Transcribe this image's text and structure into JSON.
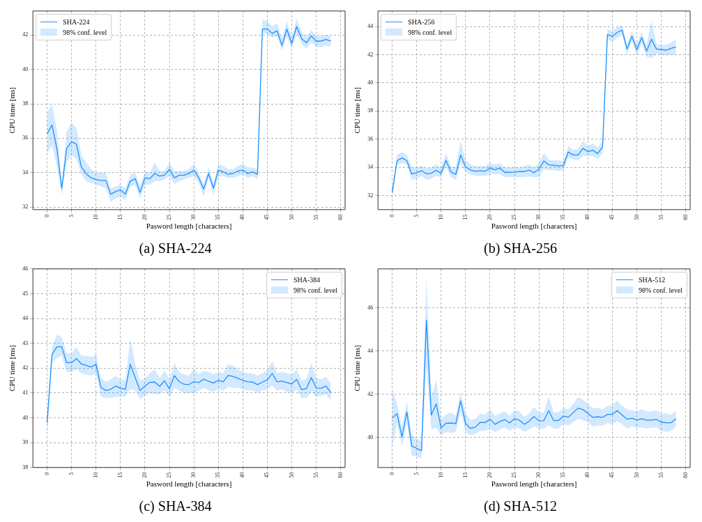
{
  "chart_data": [
    {
      "type": "line",
      "title": "(a) SHA-224",
      "xlabel": "Pasword length [characters]",
      "ylabel": "CPU time [ms]",
      "grid": true,
      "legend": "top left",
      "annotations": [
        "98% conf. level"
      ],
      "xlim": [
        -2.9,
        60.9
      ],
      "ylim": [
        31.85,
        43.4
      ],
      "xticks": [
        0,
        5,
        10,
        15,
        20,
        25,
        30,
        35,
        40,
        45,
        50,
        55,
        60
      ],
      "yticks": [
        32,
        34,
        36,
        38,
        40,
        42
      ],
      "x": [
        0,
        1,
        2,
        3,
        4,
        5,
        6,
        7,
        8,
        9,
        10,
        11,
        12,
        13,
        14,
        15,
        16,
        17,
        18,
        19,
        20,
        21,
        22,
        23,
        24,
        25,
        26,
        27,
        28,
        29,
        30,
        31,
        32,
        33,
        34,
        35,
        36,
        37,
        38,
        39,
        40,
        41,
        42,
        43,
        44,
        45,
        46,
        47,
        48,
        49,
        50,
        51,
        52,
        53,
        54,
        55,
        56,
        57,
        58
      ],
      "series": [
        {
          "name": "SHA-224",
          "color": "#1e90ff",
          "values": [
            36.26,
            36.77,
            35.4,
            33.1,
            35.4,
            35.8,
            35.65,
            34.34,
            33.93,
            33.7,
            33.6,
            33.55,
            33.55,
            32.75,
            32.9,
            33.0,
            32.75,
            33.5,
            33.65,
            32.85,
            33.7,
            33.65,
            33.95,
            33.8,
            33.85,
            34.2,
            33.7,
            33.85,
            33.85,
            33.95,
            34.15,
            33.7,
            33.05,
            33.95,
            33.1,
            34.15,
            34.05,
            33.9,
            33.95,
            34.1,
            34.15,
            33.95,
            34.05,
            33.9,
            42.35,
            42.35,
            42.1,
            42.25,
            41.4,
            42.35,
            41.5,
            42.5,
            41.8,
            41.55,
            41.95,
            41.65,
            41.65,
            41.75,
            41.65
          ],
          "lower": [
            35.1,
            35.6,
            34.4,
            32.7,
            34.6,
            35.0,
            34.8,
            33.9,
            33.5,
            33.4,
            33.3,
            33.2,
            33.1,
            32.3,
            32.5,
            32.6,
            32.4,
            33.2,
            33.3,
            32.5,
            33.3,
            33.3,
            33.5,
            33.5,
            33.6,
            33.8,
            33.35,
            33.5,
            33.6,
            33.7,
            33.8,
            33.4,
            32.6,
            33.7,
            32.7,
            33.8,
            33.8,
            33.7,
            33.7,
            33.8,
            33.9,
            33.7,
            33.8,
            33.6,
            42.1,
            42.05,
            41.85,
            41.95,
            41.1,
            41.9,
            41.2,
            42.1,
            41.5,
            41.2,
            41.6,
            41.3,
            41.3,
            41.4,
            41.3
          ],
          "upper": [
            37.5,
            37.95,
            36.5,
            33.4,
            36.4,
            36.9,
            36.6,
            35.0,
            34.6,
            34.2,
            34.0,
            34.0,
            34.0,
            33.1,
            33.2,
            33.3,
            33.1,
            33.9,
            34.0,
            33.2,
            34.1,
            34.0,
            34.6,
            34.1,
            34.1,
            34.6,
            34.1,
            34.1,
            34.1,
            34.2,
            34.5,
            34.0,
            33.3,
            34.3,
            33.4,
            34.5,
            34.4,
            34.2,
            34.2,
            34.4,
            34.5,
            34.3,
            34.3,
            34.2,
            42.9,
            42.8,
            42.5,
            42.7,
            41.8,
            42.8,
            41.9,
            42.95,
            42.2,
            41.9,
            42.3,
            41.95,
            41.95,
            42.0,
            41.95
          ]
        }
      ]
    },
    {
      "type": "line",
      "title": "(b) SHA-256",
      "xlabel": "Pasword length [characters]",
      "ylabel": "CPU time [ms]",
      "grid": true,
      "legend": "top left",
      "annotations": [
        "98% conf. level"
      ],
      "xlim": [
        -2.9,
        60.9
      ],
      "ylim": [
        31.0,
        45.1
      ],
      "xticks": [
        0,
        5,
        10,
        15,
        20,
        25,
        30,
        35,
        40,
        45,
        50,
        55,
        60
      ],
      "yticks": [
        32,
        34,
        36,
        38,
        40,
        42,
        44
      ],
      "x": [
        0,
        1,
        2,
        3,
        4,
        5,
        6,
        7,
        8,
        9,
        10,
        11,
        12,
        13,
        14,
        15,
        16,
        17,
        18,
        19,
        20,
        21,
        22,
        23,
        24,
        25,
        26,
        27,
        28,
        29,
        30,
        31,
        32,
        33,
        34,
        35,
        36,
        37,
        38,
        39,
        40,
        41,
        42,
        43,
        44,
        45,
        46,
        47,
        48,
        49,
        50,
        51,
        52,
        53,
        54,
        55,
        56,
        57,
        58
      ],
      "series": [
        {
          "name": "SHA-256",
          "color": "#1e90ff",
          "values": [
            32.23,
            34.48,
            34.67,
            34.48,
            33.53,
            33.62,
            33.77,
            33.55,
            33.58,
            33.8,
            33.57,
            34.5,
            33.68,
            33.5,
            34.88,
            34.02,
            33.82,
            33.72,
            33.77,
            33.72,
            33.95,
            33.83,
            33.95,
            33.65,
            33.65,
            33.67,
            33.7,
            33.7,
            33.8,
            33.62,
            33.87,
            34.45,
            34.18,
            34.15,
            34.1,
            34.13,
            35.1,
            34.88,
            34.88,
            35.35,
            35.12,
            35.22,
            34.98,
            35.45,
            43.43,
            43.3,
            43.58,
            43.75,
            42.4,
            43.3,
            42.35,
            43.22,
            42.25,
            43.1,
            42.4,
            42.37,
            42.32,
            42.45,
            42.55
          ],
          "lower": [
            31.6,
            34.2,
            34.3,
            34.2,
            33.1,
            33.2,
            33.4,
            33.1,
            33.2,
            33.4,
            33.3,
            34.1,
            33.3,
            33.1,
            34.3,
            33.7,
            33.5,
            33.4,
            33.4,
            33.4,
            33.5,
            33.5,
            33.5,
            33.3,
            33.3,
            33.3,
            33.3,
            33.3,
            33.35,
            33.3,
            33.3,
            33.9,
            33.8,
            33.8,
            33.75,
            33.8,
            34.7,
            34.55,
            34.5,
            34.8,
            34.8,
            34.8,
            34.6,
            35.0,
            43.1,
            42.95,
            43.2,
            43.4,
            42.0,
            42.95,
            41.95,
            42.8,
            41.85,
            41.75,
            42.05,
            42.0,
            41.95,
            42.0,
            42.0
          ],
          "upper": [
            32.5,
            34.9,
            35.1,
            34.9,
            34.0,
            34.0,
            34.1,
            33.95,
            34.0,
            34.2,
            34.0,
            35.0,
            34.1,
            34.0,
            35.85,
            34.5,
            34.2,
            34.1,
            34.1,
            34.1,
            34.3,
            34.2,
            34.3,
            34.0,
            34.0,
            34.0,
            34.0,
            34.1,
            34.2,
            34.0,
            34.3,
            35.05,
            34.55,
            34.5,
            34.5,
            34.45,
            35.5,
            35.25,
            35.3,
            35.9,
            35.5,
            35.7,
            35.4,
            35.9,
            43.8,
            43.7,
            43.95,
            44.1,
            42.8,
            43.65,
            42.8,
            43.6,
            42.65,
            44.45,
            42.75,
            42.7,
            42.7,
            42.85,
            43.1
          ]
        }
      ]
    },
    {
      "type": "line",
      "title": "(c) SHA-384",
      "xlabel": "Pasword length [characters]",
      "ylabel": "CPU time [ms]",
      "grid": true,
      "legend": "top right",
      "annotations": [
        "98% conf. level"
      ],
      "xlim": [
        -2.9,
        60.9
      ],
      "ylim": [
        38,
        46
      ],
      "xticks": [
        0,
        5,
        10,
        15,
        20,
        25,
        30,
        35,
        40,
        45,
        50,
        55,
        60
      ],
      "yticks": [
        38,
        39,
        40,
        41,
        42,
        43,
        44,
        45,
        46
      ],
      "x": [
        0,
        1,
        2,
        3,
        4,
        5,
        6,
        7,
        8,
        9,
        10,
        11,
        12,
        13,
        14,
        15,
        16,
        17,
        18,
        19,
        20,
        21,
        22,
        23,
        24,
        25,
        26,
        27,
        28,
        29,
        30,
        31,
        32,
        33,
        34,
        35,
        36,
        37,
        38,
        39,
        40,
        41,
        42,
        43,
        44,
        45,
        46,
        47,
        48,
        49,
        50,
        51,
        52,
        53,
        54,
        55,
        56,
        57,
        58
      ],
      "series": [
        {
          "name": "SHA-384",
          "color": "#1e90ff",
          "values": [
            39.8,
            42.55,
            42.86,
            42.86,
            42.22,
            42.22,
            42.39,
            42.17,
            42.11,
            42.05,
            42.16,
            41.23,
            41.1,
            41.15,
            41.28,
            41.19,
            41.15,
            42.16,
            41.62,
            41.1,
            41.28,
            41.43,
            41.44,
            41.27,
            41.49,
            41.17,
            41.7,
            41.46,
            41.35,
            41.34,
            41.46,
            41.42,
            41.56,
            41.47,
            41.4,
            41.51,
            41.45,
            41.71,
            41.67,
            41.59,
            41.51,
            41.45,
            41.44,
            41.34,
            41.44,
            41.53,
            41.79,
            41.45,
            41.48,
            41.42,
            41.36,
            41.55,
            41.14,
            41.18,
            41.62,
            41.2,
            41.19,
            41.28,
            41.02
          ],
          "lower": [
            39.2,
            42.2,
            42.4,
            42.5,
            41.85,
            41.85,
            41.95,
            41.8,
            41.75,
            41.7,
            41.8,
            40.85,
            40.8,
            40.8,
            40.85,
            40.85,
            40.85,
            41.15,
            41.1,
            40.75,
            40.9,
            41.0,
            40.95,
            40.95,
            41.1,
            40.85,
            41.2,
            41.1,
            41.0,
            41.0,
            41.0,
            41.1,
            41.2,
            41.1,
            41.05,
            41.15,
            41.1,
            41.25,
            41.2,
            41.2,
            41.15,
            41.1,
            41.1,
            41.0,
            41.1,
            41.15,
            41.3,
            41.1,
            41.15,
            41.05,
            41.0,
            41.15,
            40.8,
            40.8,
            41.05,
            40.85,
            40.9,
            40.95,
            40.7
          ],
          "upper": [
            39.8,
            42.85,
            43.35,
            43.25,
            42.6,
            42.6,
            42.85,
            42.5,
            42.5,
            42.45,
            42.55,
            41.6,
            41.45,
            41.55,
            41.7,
            41.55,
            41.5,
            43.2,
            42.2,
            41.5,
            41.6,
            41.8,
            41.95,
            41.6,
            41.9,
            41.55,
            42.2,
            41.85,
            41.75,
            41.7,
            41.95,
            41.75,
            41.9,
            41.85,
            41.75,
            41.85,
            41.8,
            42.15,
            42.1,
            41.95,
            41.85,
            41.8,
            41.8,
            41.7,
            41.8,
            41.9,
            42.3,
            41.8,
            41.85,
            41.8,
            41.75,
            41.95,
            41.5,
            41.55,
            42.2,
            41.6,
            41.55,
            41.65,
            41.4
          ]
        }
      ]
    },
    {
      "type": "line",
      "title": "(d) SHA-512",
      "xlabel": "Pasword length [characters]",
      "ylabel": "CPU time [ms]",
      "grid": true,
      "legend": "top right",
      "annotations": [
        "98% conf. level"
      ],
      "xlim": [
        -2.9,
        60.9
      ],
      "ylim": [
        38.6,
        47.8
      ],
      "xticks": [
        0,
        5,
        10,
        15,
        20,
        25,
        30,
        35,
        40,
        45,
        50,
        55,
        60
      ],
      "yticks": [
        40,
        42,
        44,
        46
      ],
      "x": [
        0,
        1,
        2,
        3,
        4,
        5,
        6,
        7,
        8,
        9,
        10,
        11,
        12,
        13,
        14,
        15,
        16,
        17,
        18,
        19,
        20,
        21,
        22,
        23,
        24,
        25,
        26,
        27,
        28,
        29,
        30,
        31,
        32,
        33,
        34,
        35,
        36,
        37,
        38,
        39,
        40,
        41,
        42,
        43,
        44,
        45,
        46,
        47,
        48,
        49,
        50,
        51,
        52,
        53,
        54,
        55,
        56,
        57,
        58
      ],
      "series": [
        {
          "name": "SHA-512",
          "color": "#1e90ff",
          "values": [
            40.89,
            41.1,
            40.02,
            41.17,
            39.6,
            39.49,
            39.38,
            45.43,
            41.03,
            41.55,
            40.43,
            40.65,
            40.66,
            40.63,
            41.69,
            40.64,
            40.41,
            40.47,
            40.69,
            40.68,
            40.84,
            40.6,
            40.73,
            40.82,
            40.66,
            40.86,
            40.79,
            40.6,
            40.75,
            40.96,
            40.76,
            40.77,
            41.23,
            40.77,
            40.78,
            40.98,
            40.93,
            41.14,
            41.35,
            41.28,
            41.11,
            40.92,
            40.95,
            40.92,
            41.06,
            41.06,
            41.23,
            41.03,
            40.84,
            40.88,
            40.8,
            40.86,
            40.79,
            40.79,
            40.83,
            40.7,
            40.67,
            40.67,
            40.86
          ],
          "lower": [
            39.55,
            40.6,
            39.6,
            40.65,
            39.15,
            39.1,
            39.0,
            43.3,
            40.35,
            40.45,
            40.1,
            40.25,
            40.2,
            40.25,
            41.2,
            40.25,
            40.1,
            40.15,
            40.3,
            40.3,
            40.4,
            40.25,
            40.35,
            40.45,
            40.3,
            40.45,
            40.4,
            40.25,
            40.35,
            40.5,
            40.4,
            40.4,
            40.55,
            40.4,
            40.4,
            40.6,
            40.55,
            40.7,
            40.85,
            40.8,
            40.7,
            40.5,
            40.55,
            40.55,
            40.65,
            40.6,
            40.75,
            40.6,
            40.4,
            40.5,
            40.45,
            40.45,
            40.4,
            40.45,
            40.45,
            40.3,
            40.25,
            40.3,
            40.5
          ],
          "upper": [
            42.25,
            41.55,
            40.5,
            41.65,
            40.1,
            39.95,
            39.8,
            47.4,
            41.85,
            42.65,
            40.85,
            41.05,
            41.15,
            41.0,
            42.1,
            41.1,
            40.8,
            40.85,
            41.1,
            41.05,
            41.3,
            41.0,
            41.1,
            41.2,
            41.0,
            41.25,
            41.2,
            40.95,
            41.1,
            41.4,
            41.15,
            41.15,
            41.9,
            41.15,
            41.15,
            41.35,
            41.3,
            41.55,
            41.85,
            41.75,
            41.55,
            41.35,
            41.35,
            41.3,
            41.45,
            41.5,
            41.7,
            41.45,
            41.3,
            41.25,
            41.2,
            41.3,
            41.2,
            41.2,
            41.25,
            41.1,
            41.1,
            41.05,
            41.25
          ]
        }
      ]
    }
  ]
}
